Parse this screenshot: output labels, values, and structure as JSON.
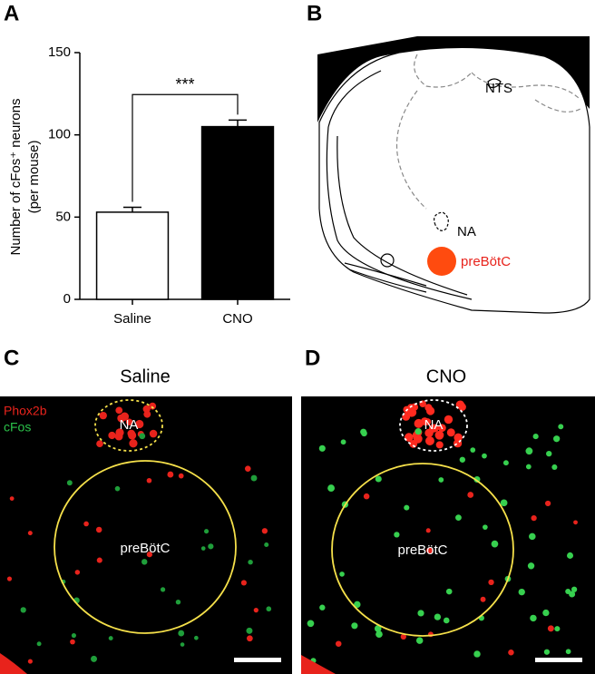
{
  "panel_labels": [
    "A",
    "B",
    "C",
    "D"
  ],
  "chart_data": {
    "type": "bar",
    "ylabel": "Number of cFos⁺ neurons",
    "ylabel_sub": "(per mouse)",
    "categories": [
      "Saline",
      "CNO"
    ],
    "values": [
      53,
      105
    ],
    "errors": [
      3,
      4
    ],
    "colors": [
      "#ffffff",
      "#000000"
    ],
    "annotation": "***",
    "ylim": [
      0,
      150
    ],
    "yticks": [
      0,
      50,
      100,
      150
    ]
  },
  "diagram": {
    "labels": [
      "NTS",
      "NA",
      "preBötC"
    ]
  },
  "micrographs": [
    {
      "title": "Saline",
      "legend": [
        "Phox2b",
        "cFos"
      ],
      "regions": [
        "NA",
        "preBötC"
      ]
    },
    {
      "title": "CNO",
      "regions": [
        "NA",
        "preBötC"
      ]
    }
  ]
}
